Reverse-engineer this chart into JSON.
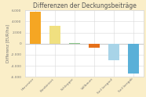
{
  "title": "Differenzen der Deckungsbeiträge",
  "ylabel": "Differenz [EUR/ha]",
  "categories": [
    "Harvester",
    "Kombiniert",
    "Schlepper",
    "Vollbaum",
    "Seil bergauf",
    "Seil bergab"
  ],
  "values": [
    5700,
    3200,
    100,
    -700,
    -3000,
    -5400
  ],
  "bar_colors": [
    "#f5a623",
    "#f0e080",
    "#8bc88b",
    "#e5701a",
    "#a8d4e8",
    "#5ab0d8"
  ],
  "background_color": "#faeec8",
  "plot_background": "#ffffff",
  "ylim": [
    -6000,
    6000
  ],
  "yticks": [
    -6000,
    -4000,
    -2000,
    0,
    2000,
    4000,
    6000
  ],
  "title_fontsize": 5.5,
  "axis_fontsize": 3.8,
  "tick_fontsize": 3.2,
  "xlabel_fontsize": 3.2,
  "grid_color": "#d8d8d8",
  "title_color": "#555555",
  "axis_color": "#777777"
}
